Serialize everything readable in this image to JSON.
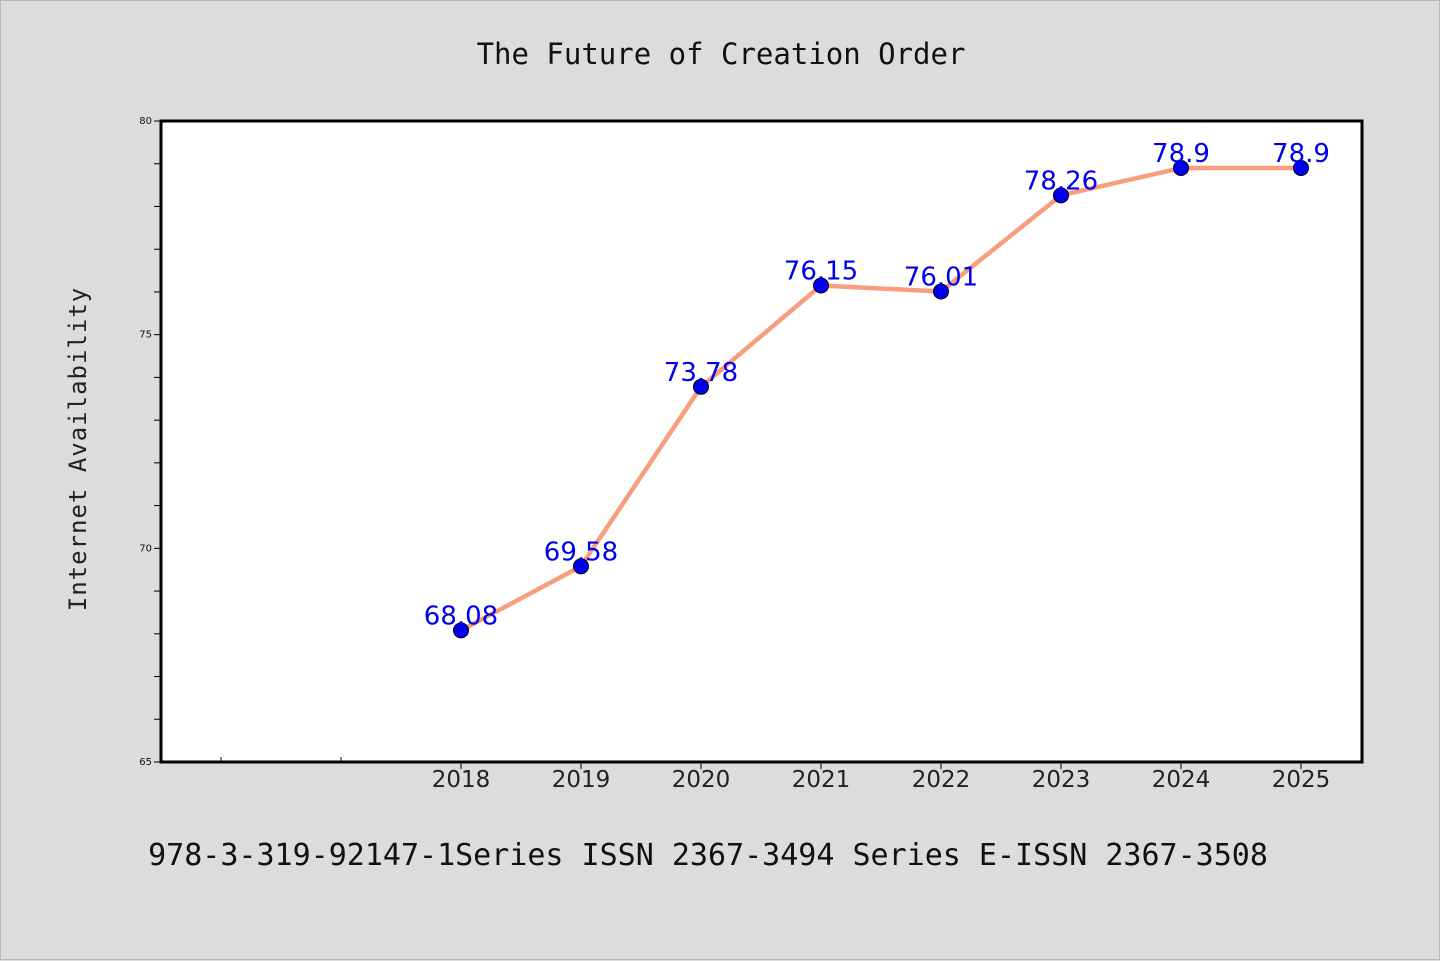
{
  "chart_data": {
    "type": "line",
    "title": "The Future of Creation Order",
    "xlabel": "",
    "ylabel": "Internet Availability",
    "categories": [
      "2018",
      "2019",
      "2020",
      "2021",
      "2022",
      "2023",
      "2024",
      "2025"
    ],
    "series": [
      {
        "values": [
          68.08,
          69.58,
          73.78,
          76.15,
          76.01,
          78.26,
          78.9,
          78.9
        ]
      }
    ],
    "data_labels": [
      "68.08",
      "69.58",
      "73.78",
      "76.15",
      "76.01",
      "78.26",
      "78.9",
      "78.9"
    ],
    "ylim": [
      65,
      80
    ],
    "yticks": [
      "65",
      "70",
      "75",
      "80"
    ],
    "grid": false,
    "legend": "none",
    "colors": {
      "line": "#f79e7f",
      "marker": "#0000ee",
      "label": "#0000ee",
      "plot_bg": "#ffffff",
      "page_bg": "#dcdcdc"
    }
  },
  "footer": "978-3-319-92147-1Series ISSN 2367-3494 Series E-ISSN 2367-3508"
}
